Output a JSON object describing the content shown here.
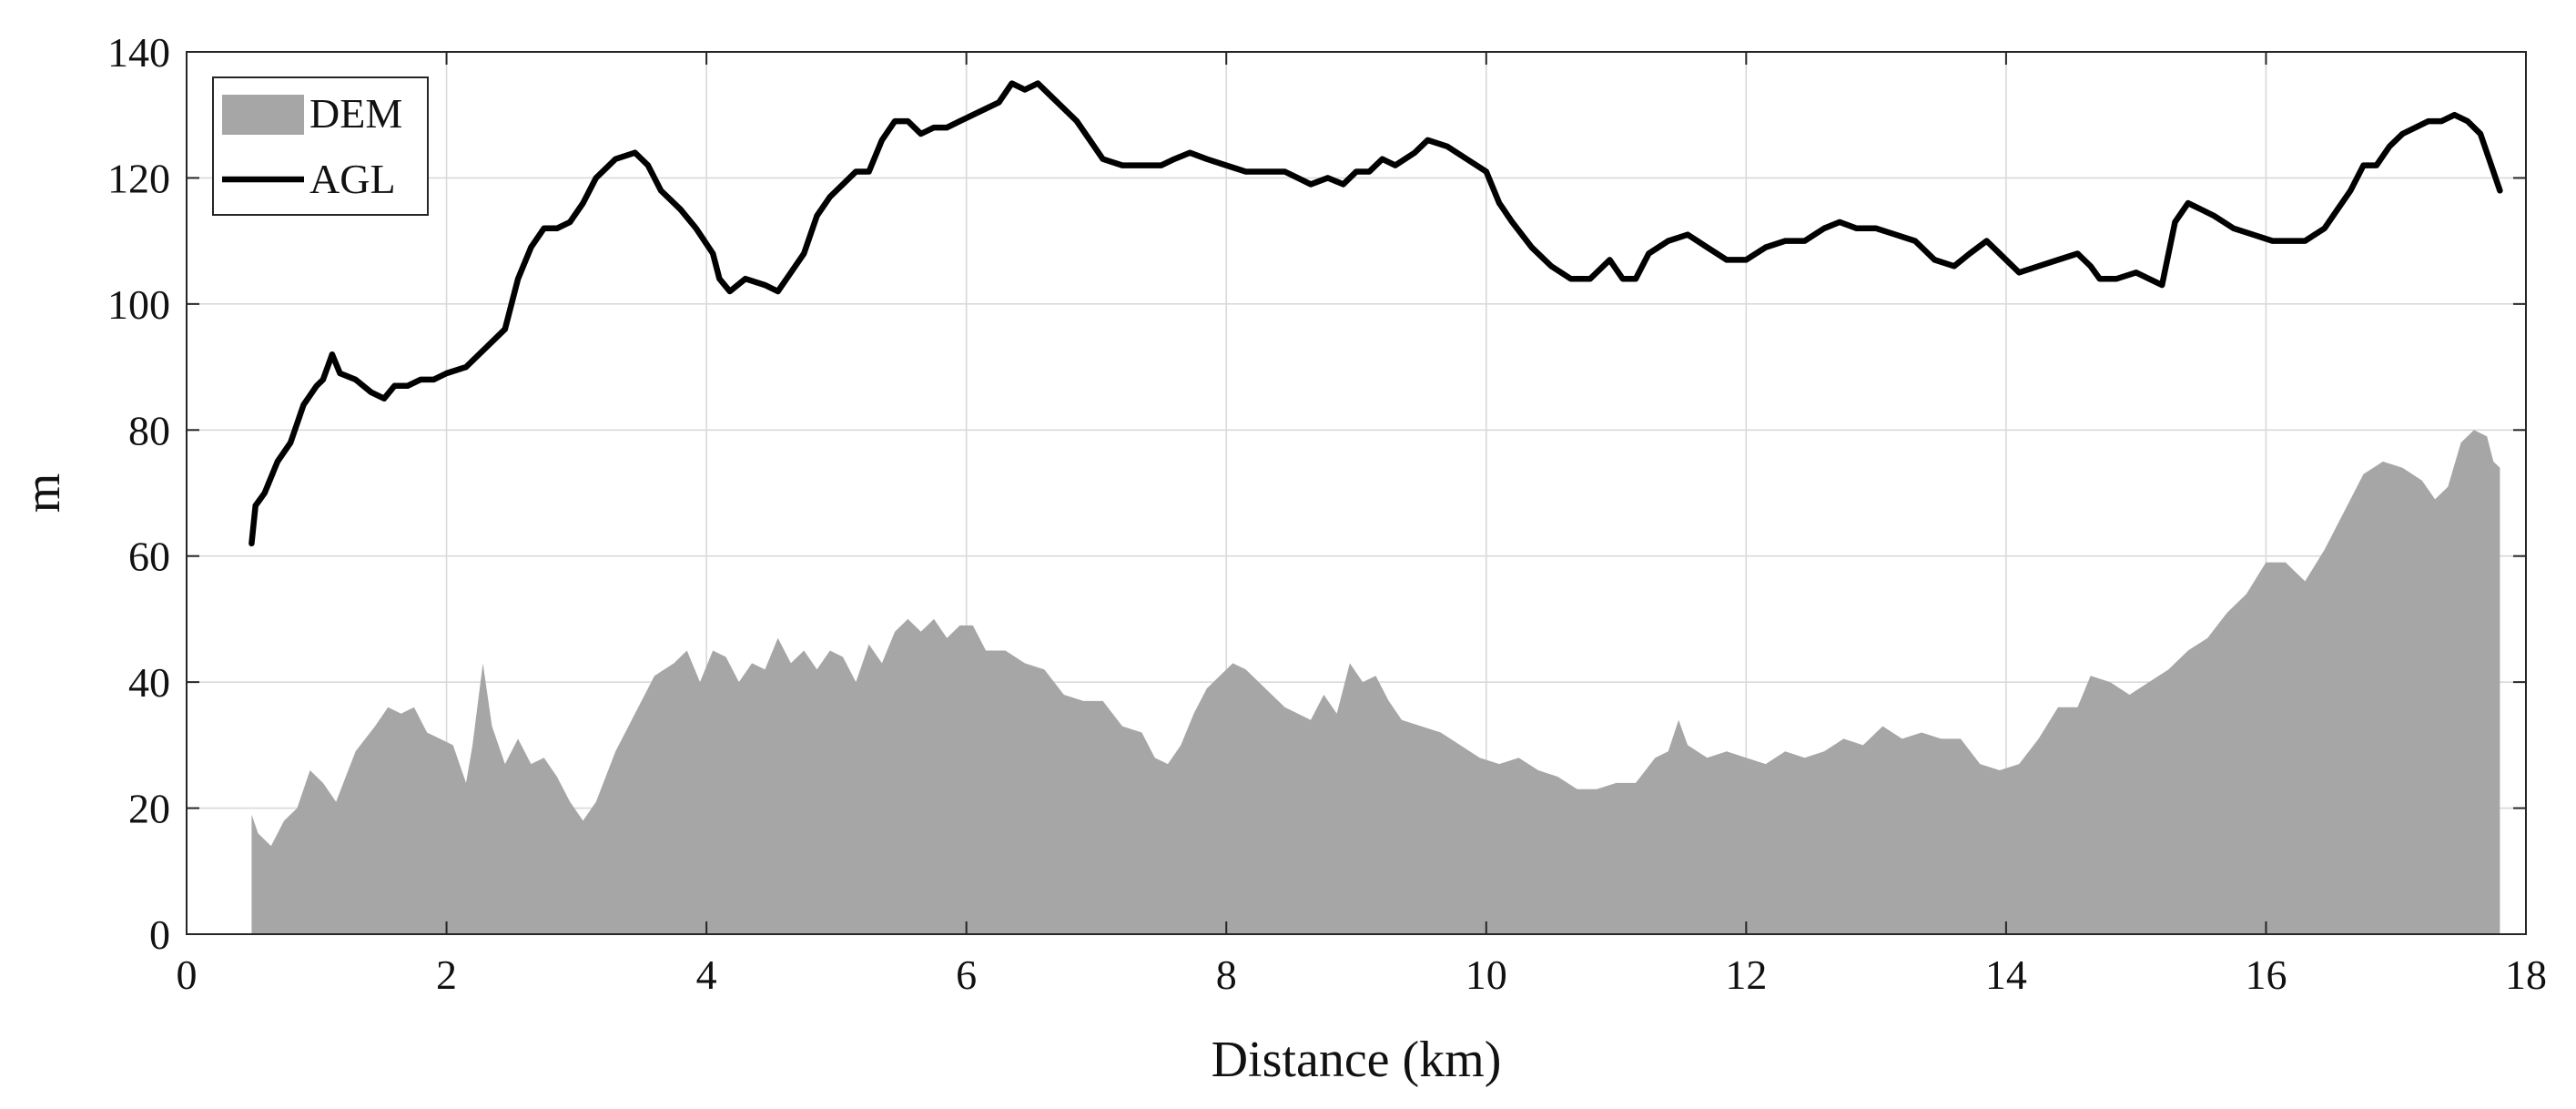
{
  "chart_data": {
    "type": "area",
    "title": "",
    "xlabel": "Distance (km)",
    "ylabel": "m",
    "xlim": [
      0,
      18
    ],
    "ylim": [
      0,
      140
    ],
    "x_ticks": [
      0,
      2,
      4,
      6,
      8,
      10,
      12,
      14,
      16,
      18
    ],
    "y_ticks": [
      0,
      20,
      40,
      60,
      80,
      100,
      120,
      140
    ],
    "grid": true,
    "legend_position": "top-left",
    "series": [
      {
        "name": "DEM",
        "style": "filled-area",
        "color": "#a6a6a6",
        "points": [
          [
            0.5,
            19
          ],
          [
            0.55,
            16
          ],
          [
            0.65,
            14
          ],
          [
            0.75,
            18
          ],
          [
            0.85,
            20
          ],
          [
            0.95,
            26
          ],
          [
            1.05,
            24
          ],
          [
            1.15,
            21
          ],
          [
            1.3,
            29
          ],
          [
            1.45,
            33
          ],
          [
            1.55,
            36
          ],
          [
            1.65,
            35
          ],
          [
            1.75,
            36
          ],
          [
            1.85,
            32
          ],
          [
            1.95,
            31
          ],
          [
            2.05,
            30
          ],
          [
            2.15,
            24
          ],
          [
            2.2,
            30
          ],
          [
            2.28,
            43
          ],
          [
            2.35,
            33
          ],
          [
            2.45,
            27
          ],
          [
            2.55,
            31
          ],
          [
            2.65,
            27
          ],
          [
            2.75,
            28
          ],
          [
            2.85,
            25
          ],
          [
            2.95,
            21
          ],
          [
            3.05,
            18
          ],
          [
            3.15,
            21
          ],
          [
            3.3,
            29
          ],
          [
            3.45,
            35
          ],
          [
            3.6,
            41
          ],
          [
            3.75,
            43
          ],
          [
            3.85,
            45
          ],
          [
            3.95,
            40
          ],
          [
            4.05,
            45
          ],
          [
            4.15,
            44
          ],
          [
            4.25,
            40
          ],
          [
            4.35,
            43
          ],
          [
            4.45,
            42
          ],
          [
            4.55,
            47
          ],
          [
            4.65,
            43
          ],
          [
            4.75,
            45
          ],
          [
            4.85,
            42
          ],
          [
            4.95,
            45
          ],
          [
            5.05,
            44
          ],
          [
            5.15,
            40
          ],
          [
            5.25,
            46
          ],
          [
            5.35,
            43
          ],
          [
            5.45,
            48
          ],
          [
            5.55,
            50
          ],
          [
            5.65,
            48
          ],
          [
            5.75,
            50
          ],
          [
            5.85,
            47
          ],
          [
            5.95,
            49
          ],
          [
            6.05,
            49
          ],
          [
            6.15,
            45
          ],
          [
            6.3,
            45
          ],
          [
            6.45,
            43
          ],
          [
            6.6,
            42
          ],
          [
            6.75,
            38
          ],
          [
            6.9,
            37
          ],
          [
            7.05,
            37
          ],
          [
            7.2,
            33
          ],
          [
            7.35,
            32
          ],
          [
            7.45,
            28
          ],
          [
            7.55,
            27
          ],
          [
            7.65,
            30
          ],
          [
            7.75,
            35
          ],
          [
            7.85,
            39
          ],
          [
            7.95,
            41
          ],
          [
            8.05,
            43
          ],
          [
            8.15,
            42
          ],
          [
            8.3,
            39
          ],
          [
            8.45,
            36
          ],
          [
            8.55,
            35
          ],
          [
            8.65,
            34
          ],
          [
            8.75,
            38
          ],
          [
            8.85,
            35
          ],
          [
            8.95,
            43
          ],
          [
            9.05,
            40
          ],
          [
            9.15,
            41
          ],
          [
            9.25,
            37
          ],
          [
            9.35,
            34
          ],
          [
            9.5,
            33
          ],
          [
            9.65,
            32
          ],
          [
            9.8,
            30
          ],
          [
            9.95,
            28
          ],
          [
            10.1,
            27
          ],
          [
            10.25,
            28
          ],
          [
            10.4,
            26
          ],
          [
            10.55,
            25
          ],
          [
            10.7,
            23
          ],
          [
            10.85,
            23
          ],
          [
            11.0,
            24
          ],
          [
            11.15,
            24
          ],
          [
            11.3,
            28
          ],
          [
            11.4,
            29
          ],
          [
            11.48,
            34
          ],
          [
            11.55,
            30
          ],
          [
            11.7,
            28
          ],
          [
            11.85,
            29
          ],
          [
            12.0,
            28
          ],
          [
            12.15,
            27
          ],
          [
            12.3,
            29
          ],
          [
            12.45,
            28
          ],
          [
            12.6,
            29
          ],
          [
            12.75,
            31
          ],
          [
            12.9,
            30
          ],
          [
            13.05,
            33
          ],
          [
            13.2,
            31
          ],
          [
            13.35,
            32
          ],
          [
            13.5,
            31
          ],
          [
            13.65,
            31
          ],
          [
            13.8,
            27
          ],
          [
            13.95,
            26
          ],
          [
            14.1,
            27
          ],
          [
            14.25,
            31
          ],
          [
            14.4,
            36
          ],
          [
            14.55,
            36
          ],
          [
            14.65,
            41
          ],
          [
            14.8,
            40
          ],
          [
            14.95,
            38
          ],
          [
            15.1,
            40
          ],
          [
            15.25,
            42
          ],
          [
            15.4,
            45
          ],
          [
            15.55,
            47
          ],
          [
            15.7,
            51
          ],
          [
            15.85,
            54
          ],
          [
            16.0,
            59
          ],
          [
            16.15,
            59
          ],
          [
            16.3,
            56
          ],
          [
            16.45,
            61
          ],
          [
            16.6,
            67
          ],
          [
            16.75,
            73
          ],
          [
            16.9,
            75
          ],
          [
            17.05,
            74
          ],
          [
            17.2,
            72
          ],
          [
            17.3,
            69
          ],
          [
            17.4,
            71
          ],
          [
            17.5,
            78
          ],
          [
            17.6,
            80
          ],
          [
            17.7,
            79
          ],
          [
            17.75,
            75
          ],
          [
            17.8,
            74
          ]
        ]
      },
      {
        "name": "AGL",
        "style": "line",
        "color": "#000000",
        "points": [
          [
            0.5,
            62
          ],
          [
            0.53,
            68
          ],
          [
            0.6,
            70
          ],
          [
            0.7,
            75
          ],
          [
            0.8,
            78
          ],
          [
            0.9,
            84
          ],
          [
            1.0,
            87
          ],
          [
            1.05,
            88
          ],
          [
            1.12,
            92
          ],
          [
            1.18,
            89
          ],
          [
            1.3,
            88
          ],
          [
            1.42,
            86
          ],
          [
            1.52,
            85
          ],
          [
            1.6,
            87
          ],
          [
            1.7,
            87
          ],
          [
            1.8,
            88
          ],
          [
            1.9,
            88
          ],
          [
            2.0,
            89
          ],
          [
            2.15,
            90
          ],
          [
            2.3,
            93
          ],
          [
            2.45,
            96
          ],
          [
            2.55,
            104
          ],
          [
            2.65,
            109
          ],
          [
            2.75,
            112
          ],
          [
            2.85,
            112
          ],
          [
            2.95,
            113
          ],
          [
            3.05,
            116
          ],
          [
            3.15,
            120
          ],
          [
            3.3,
            123
          ],
          [
            3.45,
            124
          ],
          [
            3.55,
            122
          ],
          [
            3.65,
            118
          ],
          [
            3.8,
            115
          ],
          [
            3.92,
            112
          ],
          [
            4.05,
            108
          ],
          [
            4.1,
            104
          ],
          [
            4.18,
            102
          ],
          [
            4.3,
            104
          ],
          [
            4.45,
            103
          ],
          [
            4.55,
            102
          ],
          [
            4.65,
            105
          ],
          [
            4.75,
            108
          ],
          [
            4.85,
            114
          ],
          [
            4.95,
            117
          ],
          [
            5.05,
            119
          ],
          [
            5.15,
            121
          ],
          [
            5.25,
            121
          ],
          [
            5.35,
            126
          ],
          [
            5.45,
            129
          ],
          [
            5.55,
            129
          ],
          [
            5.65,
            127
          ],
          [
            5.75,
            128
          ],
          [
            5.85,
            128
          ],
          [
            5.95,
            129
          ],
          [
            6.05,
            130
          ],
          [
            6.15,
            131
          ],
          [
            6.25,
            132
          ],
          [
            6.35,
            135
          ],
          [
            6.45,
            134
          ],
          [
            6.55,
            135
          ],
          [
            6.65,
            133
          ],
          [
            6.75,
            131
          ],
          [
            6.85,
            129
          ],
          [
            6.95,
            126
          ],
          [
            7.05,
            123
          ],
          [
            7.2,
            122
          ],
          [
            7.35,
            122
          ],
          [
            7.5,
            122
          ],
          [
            7.6,
            123
          ],
          [
            7.72,
            124
          ],
          [
            7.85,
            123
          ],
          [
            8.0,
            122
          ],
          [
            8.15,
            121
          ],
          [
            8.3,
            121
          ],
          [
            8.45,
            121
          ],
          [
            8.55,
            120
          ],
          [
            8.65,
            119
          ],
          [
            8.78,
            120
          ],
          [
            8.9,
            119
          ],
          [
            9.0,
            121
          ],
          [
            9.1,
            121
          ],
          [
            9.2,
            123
          ],
          [
            9.3,
            122
          ],
          [
            9.45,
            124
          ],
          [
            9.55,
            126
          ],
          [
            9.7,
            125
          ],
          [
            9.85,
            123
          ],
          [
            10.0,
            121
          ],
          [
            10.1,
            116
          ],
          [
            10.2,
            113
          ],
          [
            10.35,
            109
          ],
          [
            10.5,
            106
          ],
          [
            10.65,
            104
          ],
          [
            10.8,
            104
          ],
          [
            10.95,
            107
          ],
          [
            11.05,
            104
          ],
          [
            11.15,
            104
          ],
          [
            11.25,
            108
          ],
          [
            11.4,
            110
          ],
          [
            11.55,
            111
          ],
          [
            11.7,
            109
          ],
          [
            11.85,
            107
          ],
          [
            12.0,
            107
          ],
          [
            12.15,
            109
          ],
          [
            12.3,
            110
          ],
          [
            12.45,
            110
          ],
          [
            12.6,
            112
          ],
          [
            12.72,
            113
          ],
          [
            12.85,
            112
          ],
          [
            13.0,
            112
          ],
          [
            13.15,
            111
          ],
          [
            13.3,
            110
          ],
          [
            13.45,
            107
          ],
          [
            13.6,
            106
          ],
          [
            13.72,
            108
          ],
          [
            13.85,
            110
          ],
          [
            13.95,
            108
          ],
          [
            14.1,
            105
          ],
          [
            14.25,
            106
          ],
          [
            14.4,
            107
          ],
          [
            14.55,
            108
          ],
          [
            14.65,
            106
          ],
          [
            14.72,
            104
          ],
          [
            14.85,
            104
          ],
          [
            15.0,
            105
          ],
          [
            15.1,
            104
          ],
          [
            15.2,
            103
          ],
          [
            15.3,
            113
          ],
          [
            15.4,
            116
          ],
          [
            15.5,
            115
          ],
          [
            15.6,
            114
          ],
          [
            15.75,
            112
          ],
          [
            15.9,
            111
          ],
          [
            16.05,
            110
          ],
          [
            16.2,
            110
          ],
          [
            16.3,
            110
          ],
          [
            16.45,
            112
          ],
          [
            16.55,
            115
          ],
          [
            16.65,
            118
          ],
          [
            16.75,
            122
          ],
          [
            16.85,
            122
          ],
          [
            16.95,
            125
          ],
          [
            17.05,
            127
          ],
          [
            17.15,
            128
          ],
          [
            17.25,
            129
          ],
          [
            17.35,
            129
          ],
          [
            17.45,
            130
          ],
          [
            17.55,
            129
          ],
          [
            17.65,
            127
          ],
          [
            17.75,
            121
          ],
          [
            17.8,
            118
          ]
        ]
      }
    ]
  }
}
